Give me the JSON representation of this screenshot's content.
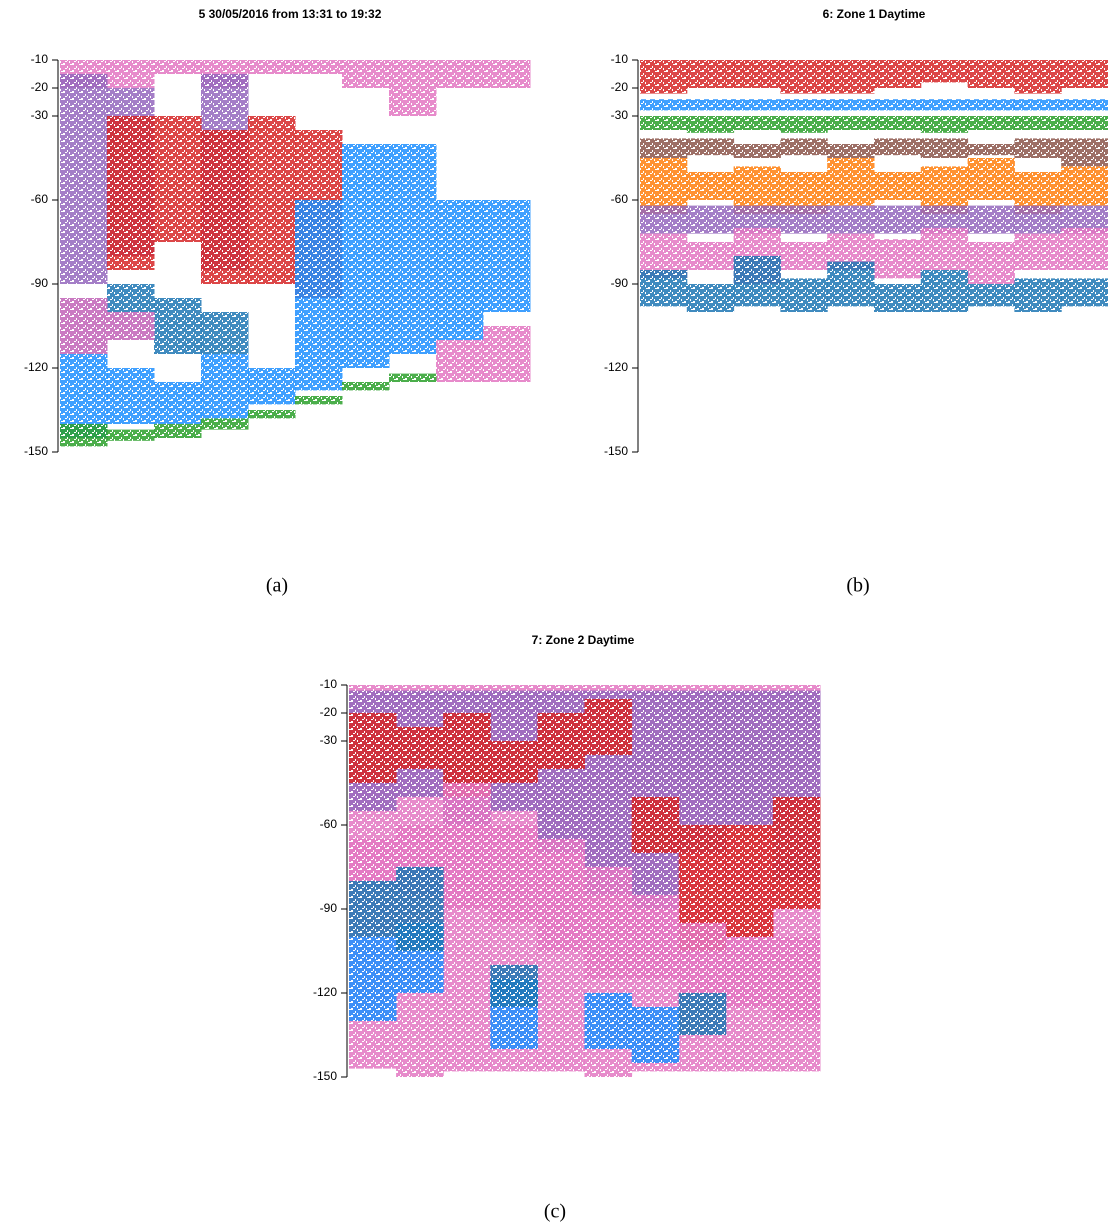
{
  "chart_data": [
    {
      "type": "band",
      "title": "5 30/05/2016 from 13:31 to 19:32",
      "caption": "(a)",
      "ylim": [
        -150,
        -10
      ],
      "yticks": [
        -10,
        -20,
        -30,
        -60,
        -90,
        -120,
        -150
      ],
      "series": [
        {
          "color": "#e377c2",
          "high": [
            -10,
            -10,
            -10,
            -10,
            -10,
            -10,
            -10,
            -10,
            -10,
            -10
          ],
          "low": [
            -20,
            -20,
            -15,
            -20,
            -15,
            -15,
            -20,
            -30,
            -20,
            -20
          ]
        },
        {
          "color": "#9467bd",
          "high": [
            -15,
            -20,
            null,
            -15,
            null,
            null,
            null,
            null,
            null,
            null
          ],
          "low": [
            -90,
            -80,
            null,
            -85,
            null,
            null,
            null,
            null,
            null,
            null
          ]
        },
        {
          "color": "#d62728",
          "high": [
            null,
            -30,
            -30,
            -35,
            -30,
            -35,
            null,
            null,
            null,
            null
          ],
          "low": [
            null,
            -85,
            -75,
            -90,
            -90,
            -95,
            null,
            null,
            null,
            null
          ]
        },
        {
          "color": "#1f8fff",
          "high": [
            -115,
            -120,
            -125,
            -115,
            -120,
            -60,
            -40,
            -40,
            -60,
            -60
          ],
          "low": [
            -145,
            -140,
            -140,
            -138,
            -133,
            -128,
            -120,
            -115,
            -110,
            -100
          ]
        },
        {
          "color": "#1f77b4",
          "high": [
            -95,
            -90,
            -95,
            -100,
            null,
            null,
            null,
            null,
            null,
            null
          ],
          "low": [
            -115,
            -110,
            -115,
            -115,
            null,
            null,
            null,
            null,
            null,
            null
          ]
        },
        {
          "color": "#e377c2",
          "high": [
            -95,
            -100,
            null,
            null,
            null,
            null,
            null,
            null,
            -110,
            -105
          ],
          "low": [
            -115,
            -110,
            null,
            null,
            null,
            null,
            null,
            null,
            -125,
            -125
          ]
        },
        {
          "color": "#2ca02c",
          "high": [
            -140,
            -142,
            -140,
            -138,
            -135,
            -130,
            -125,
            -122,
            null,
            null
          ],
          "low": [
            -148,
            -146,
            -145,
            -142,
            -138,
            -133,
            -128,
            -125,
            null,
            null
          ]
        }
      ]
    },
    {
      "type": "band",
      "title": "6: Zone 1 Daytime",
      "caption": "(b)",
      "ylim": [
        -150,
        -10
      ],
      "yticks": [
        -10,
        -20,
        -30,
        -60,
        -90,
        -120,
        -150
      ],
      "series": [
        {
          "color": "#d62728",
          "high": [
            -10,
            -10,
            -10,
            -10,
            -10,
            -10,
            -10,
            -10,
            -10,
            -10
          ],
          "low": [
            -22,
            -20,
            -20,
            -22,
            -22,
            -20,
            -18,
            -20,
            -22,
            -20
          ]
        },
        {
          "color": "#1f8fff",
          "high": [
            -24,
            -24,
            -24,
            -24,
            -24,
            -24,
            -24,
            -24,
            -24,
            -24
          ],
          "low": [
            -28,
            -28,
            -28,
            -28,
            -28,
            -28,
            -28,
            -28,
            -28,
            -28
          ]
        },
        {
          "color": "#2ca02c",
          "high": [
            -30,
            -30,
            -30,
            -30,
            -30,
            -30,
            -30,
            -30,
            -30,
            -30
          ],
          "low": [
            -35,
            -36,
            -35,
            -36,
            -35,
            -35,
            -36,
            -35,
            -35,
            -35
          ]
        },
        {
          "color": "#8c564b",
          "high": [
            -38,
            -38,
            -40,
            -38,
            -40,
            -38,
            -38,
            -40,
            -38,
            -38
          ],
          "low": [
            -45,
            -44,
            -45,
            -44,
            -45,
            -44,
            -45,
            -44,
            -45,
            -48
          ]
        },
        {
          "color": "#ff7f0e",
          "high": [
            -45,
            -50,
            -48,
            -50,
            -45,
            -50,
            -48,
            -45,
            -50,
            -48
          ],
          "low": [
            -65,
            -60,
            -65,
            -65,
            -62,
            -60,
            -65,
            -60,
            -65,
            -62
          ]
        },
        {
          "color": "#9467bd",
          "high": [
            -62,
            -62,
            -62,
            -62,
            -62,
            -62,
            -62,
            -62,
            -62,
            -62
          ],
          "low": [
            -72,
            -72,
            -72,
            -72,
            -72,
            -72,
            -72,
            -72,
            -72,
            -72
          ]
        },
        {
          "color": "#e377c2",
          "high": [
            -72,
            -75,
            -70,
            -75,
            -72,
            -74,
            -70,
            -75,
            -72,
            -70
          ],
          "low": [
            -88,
            -85,
            -90,
            -85,
            -85,
            -88,
            -85,
            -90,
            -85,
            -85
          ]
        },
        {
          "color": "#1f77b4",
          "high": [
            -85,
            -90,
            -80,
            -88,
            -82,
            -90,
            -85,
            -90,
            -88,
            -88
          ],
          "low": [
            -98,
            -100,
            -98,
            -100,
            -98,
            -100,
            -100,
            -98,
            -100,
            -98
          ]
        }
      ]
    },
    {
      "type": "band",
      "title": "7: Zone 2 Daytime",
      "caption": "(c)",
      "ylim": [
        -150,
        -10
      ],
      "yticks": [
        -10,
        -20,
        -30,
        -60,
        -90,
        -120,
        -150
      ],
      "series": [
        {
          "color": "#e377c2",
          "high": [
            -10,
            -10,
            -10,
            -10,
            -10,
            -10,
            -10,
            -10,
            -10,
            -10
          ],
          "low": [
            -147,
            -150,
            -148,
            -148,
            -148,
            -150,
            -148,
            -148,
            -148,
            -148
          ]
        },
        {
          "color": "#9467bd",
          "high": [
            -12,
            -12,
            -12,
            -12,
            -12,
            -12,
            -12,
            -12,
            -12,
            -12
          ],
          "low": [
            -55,
            -50,
            -60,
            -55,
            -70,
            -85,
            -90,
            -70,
            -60,
            -80
          ]
        },
        {
          "color": "#d62728",
          "high": [
            -20,
            -25,
            -20,
            -30,
            -20,
            -15,
            -50,
            -60,
            -60,
            -50
          ],
          "low": [
            -45,
            -40,
            -50,
            -45,
            -40,
            -35,
            -70,
            -105,
            -100,
            -90
          ]
        },
        {
          "color": "#e377c2",
          "high": [
            -65,
            -60,
            -45,
            -60,
            -65,
            -75,
            -85,
            -95,
            -100,
            -100
          ],
          "low": [
            -80,
            -85,
            -90,
            -95,
            -105,
            -115,
            -115,
            -120,
            -125,
            -130
          ]
        },
        {
          "color": "#1f8fff",
          "high": [
            -100,
            -95,
            null,
            -115,
            null,
            -120,
            -125,
            null,
            null,
            null
          ],
          "low": [
            -130,
            -120,
            null,
            -140,
            null,
            -140,
            -145,
            null,
            null,
            null
          ]
        },
        {
          "color": "#1f77b4",
          "high": [
            -80,
            -75,
            null,
            -110,
            null,
            null,
            null,
            -120,
            null,
            null
          ],
          "low": [
            -100,
            -105,
            null,
            -125,
            null,
            null,
            null,
            -135,
            null,
            null
          ]
        }
      ]
    }
  ]
}
